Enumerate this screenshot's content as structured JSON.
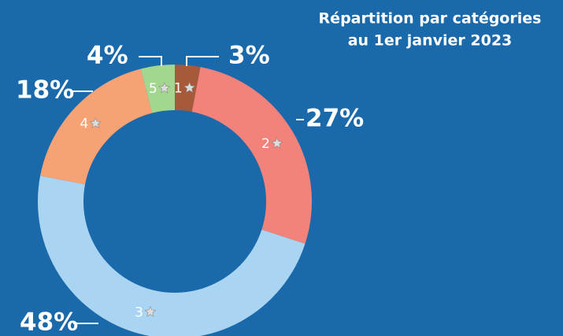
{
  "chart_data": {
    "type": "donut",
    "title": [
      "Répartition par catégories",
      "au 1er janvier 2023"
    ],
    "categories": [
      "1",
      "2",
      "3",
      "4",
      "5"
    ],
    "values": [
      3,
      27,
      48,
      18,
      4
    ],
    "value_labels": [
      "3%",
      "27%",
      "48%",
      "18%",
      "4%"
    ],
    "colors": [
      "#a65a3a",
      "#f2827a",
      "#a9d5f3",
      "#f7a275",
      "#a3d78f"
    ]
  }
}
